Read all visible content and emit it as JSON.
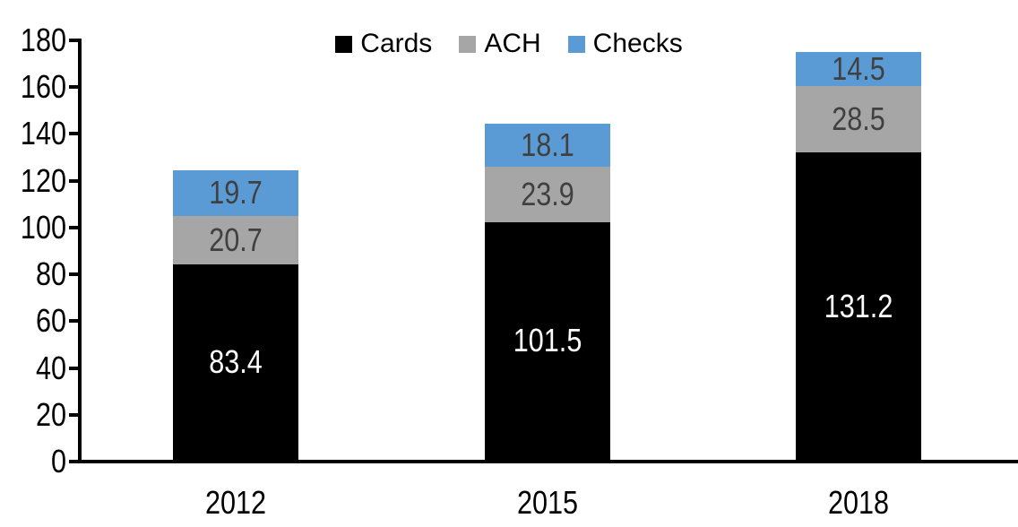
{
  "chart_data": {
    "type": "bar",
    "stacked": true,
    "categories": [
      "2012",
      "2015",
      "2018"
    ],
    "series": [
      {
        "name": "Cards",
        "color": "#000000",
        "label_color": "#ffffff",
        "values": [
          83.4,
          101.5,
          131.2
        ]
      },
      {
        "name": "ACH",
        "color": "#A6A6A6",
        "label_color": "#404040",
        "values": [
          20.7,
          23.9,
          28.5
        ]
      },
      {
        "name": "Checks",
        "color": "#5B9BD5",
        "label_color": "#404040",
        "values": [
          19.7,
          18.1,
          14.5
        ]
      }
    ],
    "ylim": [
      0,
      180
    ],
    "ytick_step": 20,
    "yticks": [
      "0",
      "20",
      "40",
      "60",
      "80",
      "100",
      "120",
      "140",
      "160",
      "180"
    ],
    "legend_position": "top-center",
    "grid": false,
    "axis_color": "#000000",
    "background_color": "#ffffff"
  }
}
